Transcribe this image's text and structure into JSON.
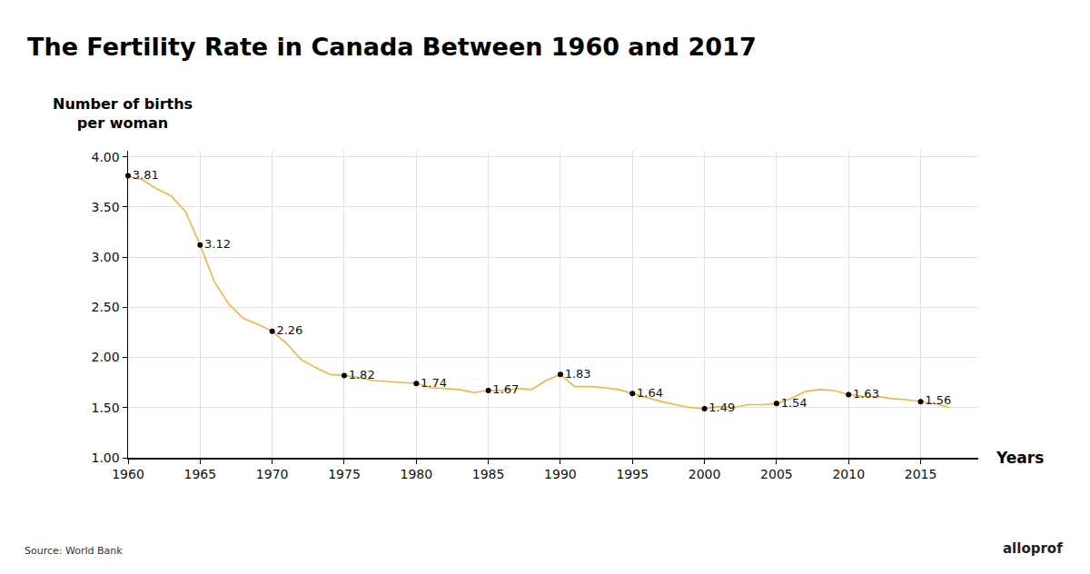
{
  "chart_data": {
    "type": "line",
    "title": "The Fertility Rate in Canada Between 1960 and 2017",
    "y_label": "Number of births per woman",
    "x_label": "Years",
    "annotations": [
      "Source: World Bank",
      "alloprof"
    ],
    "x": [
      1960,
      1961,
      1962,
      1963,
      1964,
      1965,
      1966,
      1967,
      1968,
      1969,
      1970,
      1971,
      1972,
      1973,
      1974,
      1975,
      1976,
      1977,
      1978,
      1979,
      1980,
      1981,
      1982,
      1983,
      1984,
      1985,
      1986,
      1987,
      1988,
      1989,
      1990,
      1991,
      1992,
      1993,
      1994,
      1995,
      1996,
      1997,
      1998,
      1999,
      2000,
      2001,
      2002,
      2003,
      2004,
      2005,
      2006,
      2007,
      2008,
      2009,
      2010,
      2011,
      2012,
      2013,
      2014,
      2015,
      2016,
      2017
    ],
    "series": [
      {
        "type": "line",
        "color": "#f5b342",
        "values": [
          3.81,
          3.77,
          3.68,
          3.61,
          3.45,
          3.12,
          2.75,
          2.53,
          2.39,
          2.33,
          2.26,
          2.14,
          1.98,
          1.9,
          1.83,
          1.82,
          1.8,
          1.77,
          1.76,
          1.75,
          1.74,
          1.7,
          1.69,
          1.68,
          1.65,
          1.67,
          1.67,
          1.69,
          1.68,
          1.77,
          1.83,
          1.71,
          1.71,
          1.7,
          1.68,
          1.64,
          1.6,
          1.56,
          1.53,
          1.5,
          1.49,
          1.51,
          1.5,
          1.53,
          1.53,
          1.54,
          1.59,
          1.66,
          1.68,
          1.67,
          1.63,
          1.61,
          1.61,
          1.59,
          1.58,
          1.56,
          1.54,
          1.5
        ]
      },
      {
        "type": "scatter",
        "color": "#000000",
        "marker": "circle",
        "data_labels": true,
        "x": [
          1960,
          1965,
          1970,
          1975,
          1980,
          1985,
          1990,
          1995,
          2000,
          2005,
          2010,
          2015
        ],
        "values": [
          3.81,
          3.12,
          2.26,
          1.82,
          1.74,
          1.67,
          1.83,
          1.64,
          1.49,
          1.54,
          1.63,
          1.56
        ]
      }
    ],
    "xlim": [
      1960,
      2019
    ],
    "xticks": [
      1960,
      1965,
      1970,
      1975,
      1980,
      1985,
      1990,
      1995,
      2000,
      2005,
      2010,
      2015
    ],
    "ylim": [
      1,
      4.06
    ],
    "yticks": [
      {
        "value": 1,
        "label": "1.00"
      },
      {
        "value": 1.5,
        "label": "1.50"
      },
      {
        "value": 2,
        "label": "2.00"
      },
      {
        "value": 2.5,
        "label": "2.50"
      },
      {
        "value": 3,
        "label": "3.00"
      },
      {
        "value": 3.5,
        "label": "3.50"
      },
      {
        "value": 4,
        "label": "4.00"
      }
    ],
    "grid": true
  }
}
